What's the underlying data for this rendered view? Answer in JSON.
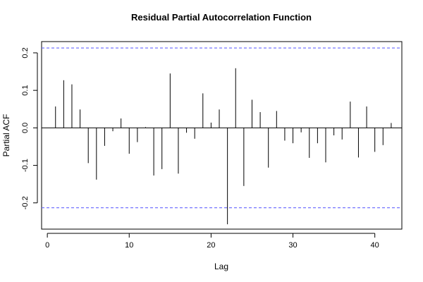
{
  "chart_data": {
    "type": "bar",
    "title": "Residual Partial Autocorrelation Function",
    "xlabel": "Lag",
    "ylabel": "Partial ACF",
    "xlim": [
      -0.7,
      43.3
    ],
    "ylim": [
      -0.27,
      0.23
    ],
    "x_ticks": [
      0,
      10,
      20,
      30,
      40
    ],
    "y_ticks": [
      -0.2,
      -0.1,
      0.0,
      0.1,
      0.2
    ],
    "x_tick_labels": [
      "0",
      "10",
      "20",
      "30",
      "40"
    ],
    "y_tick_labels": [
      "-0.2",
      "-0.1",
      "0.0",
      "0.1",
      "0.2"
    ],
    "confidence_band": 0.213,
    "confidence_color": "#6666ff",
    "zero_line": 0,
    "grid": false,
    "lags": [
      1,
      2,
      3,
      4,
      5,
      6,
      7,
      8,
      9,
      10,
      11,
      12,
      13,
      14,
      15,
      16,
      17,
      18,
      19,
      20,
      21,
      22,
      23,
      24,
      25,
      26,
      27,
      28,
      29,
      30,
      31,
      32,
      33,
      34,
      35,
      36,
      37,
      38,
      39,
      40,
      41,
      42
    ],
    "values": [
      0.057,
      0.127,
      0.116,
      0.049,
      -0.094,
      -0.138,
      -0.048,
      -0.009,
      0.025,
      -0.069,
      -0.038,
      0.002,
      -0.127,
      -0.11,
      0.145,
      -0.122,
      -0.013,
      -0.029,
      0.092,
      0.014,
      0.049,
      -0.257,
      0.159,
      -0.155,
      0.075,
      0.042,
      -0.106,
      0.045,
      -0.034,
      -0.041,
      -0.012,
      -0.08,
      -0.041,
      -0.092,
      -0.02,
      -0.031,
      0.07,
      -0.079,
      0.057,
      -0.064,
      -0.046,
      0.013
    ]
  }
}
